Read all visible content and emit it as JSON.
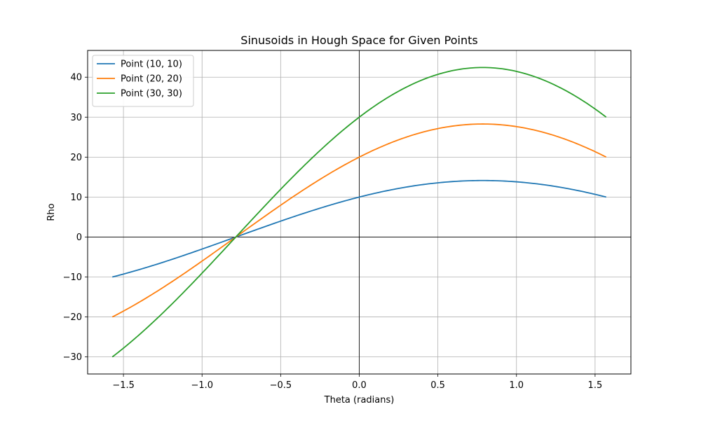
{
  "chart_data": {
    "type": "line",
    "title": "Sinusoids in Hough Space for Given Points",
    "xlabel": "Theta (radians)",
    "ylabel": "Rho",
    "xlim": [
      -1.7279,
      1.7279
    ],
    "ylim": [
      -34.27,
      46.7
    ],
    "xticks": [
      -1.5,
      -1.0,
      -0.5,
      0.0,
      0.5,
      1.0,
      1.5
    ],
    "xtick_labels": [
      "−1.5",
      "−1.0",
      "−0.5",
      "0.0",
      "0.5",
      "1.0",
      "1.5"
    ],
    "yticks": [
      -30,
      -20,
      -10,
      0,
      10,
      20,
      30,
      40
    ],
    "ytick_labels": [
      "−30",
      "−20",
      "−10",
      "0",
      "10",
      "20",
      "30",
      "40"
    ],
    "grid": true,
    "zero_lines": true,
    "legend_position": "top-left",
    "x_range": [
      -1.5708,
      1.5708
    ],
    "series": [
      {
        "name": "Point (10, 10)",
        "color": "#1f77b4",
        "x_coord": 10,
        "y_coord": 10
      },
      {
        "name": "Point (20, 20)",
        "color": "#ff7f0e",
        "x_coord": 20,
        "y_coord": 20
      },
      {
        "name": "Point (30, 30)",
        "color": "#2ca02c",
        "x_coord": 30,
        "y_coord": 30
      }
    ]
  }
}
